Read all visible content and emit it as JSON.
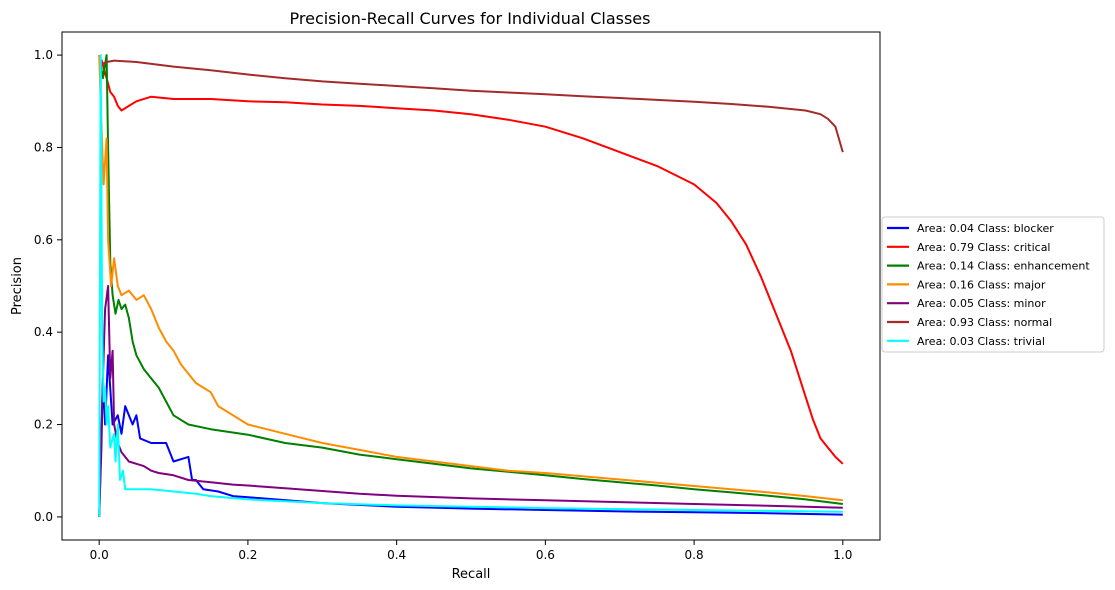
{
  "chart_data": {
    "type": "line",
    "title": "Precision-Recall Curves for Individual Classes",
    "xlabel": "Recall",
    "ylabel": "Precision",
    "xlim": [
      -0.05,
      1.05
    ],
    "ylim": [
      -0.05,
      1.05
    ],
    "xticks": [
      0.0,
      0.2,
      0.4,
      0.6,
      0.8,
      1.0
    ],
    "yticks": [
      0.0,
      0.2,
      0.4,
      0.6,
      0.8,
      1.0
    ],
    "grid": false,
    "legend_position": "center-right outside",
    "series": [
      {
        "name": "Area: 0.04 Class: blocker",
        "color": "#0000ff",
        "points": [
          [
            0,
            0
          ],
          [
            0.003,
            0.15
          ],
          [
            0.005,
            0.3
          ],
          [
            0.008,
            0.2
          ],
          [
            0.012,
            0.35
          ],
          [
            0.018,
            0.2
          ],
          [
            0.025,
            0.22
          ],
          [
            0.03,
            0.18
          ],
          [
            0.035,
            0.24
          ],
          [
            0.045,
            0.2
          ],
          [
            0.05,
            0.22
          ],
          [
            0.055,
            0.17
          ],
          [
            0.07,
            0.16
          ],
          [
            0.08,
            0.16
          ],
          [
            0.09,
            0.16
          ],
          [
            0.1,
            0.12
          ],
          [
            0.12,
            0.13
          ],
          [
            0.125,
            0.08
          ],
          [
            0.13,
            0.08
          ],
          [
            0.14,
            0.06
          ],
          [
            0.16,
            0.055
          ],
          [
            0.18,
            0.045
          ],
          [
            0.22,
            0.04
          ],
          [
            0.3,
            0.03
          ],
          [
            0.4,
            0.022
          ],
          [
            0.5,
            0.018
          ],
          [
            0.6,
            0.015
          ],
          [
            0.7,
            0.012
          ],
          [
            0.8,
            0.01
          ],
          [
            0.9,
            0.008
          ],
          [
            1.0,
            0.005
          ]
        ]
      },
      {
        "name": "Area: 0.79 Class: critical",
        "color": "#ff0000",
        "points": [
          [
            0.003,
            0.99
          ],
          [
            0.01,
            0.95
          ],
          [
            0.015,
            0.92
          ],
          [
            0.02,
            0.91
          ],
          [
            0.025,
            0.89
          ],
          [
            0.03,
            0.88
          ],
          [
            0.04,
            0.89
          ],
          [
            0.05,
            0.9
          ],
          [
            0.07,
            0.91
          ],
          [
            0.1,
            0.905
          ],
          [
            0.15,
            0.905
          ],
          [
            0.2,
            0.9
          ],
          [
            0.25,
            0.898
          ],
          [
            0.3,
            0.893
          ],
          [
            0.35,
            0.89
          ],
          [
            0.4,
            0.885
          ],
          [
            0.45,
            0.88
          ],
          [
            0.5,
            0.872
          ],
          [
            0.55,
            0.86
          ],
          [
            0.6,
            0.845
          ],
          [
            0.65,
            0.82
          ],
          [
            0.7,
            0.79
          ],
          [
            0.75,
            0.76
          ],
          [
            0.8,
            0.72
          ],
          [
            0.83,
            0.68
          ],
          [
            0.85,
            0.64
          ],
          [
            0.87,
            0.59
          ],
          [
            0.89,
            0.52
          ],
          [
            0.91,
            0.44
          ],
          [
            0.93,
            0.36
          ],
          [
            0.94,
            0.31
          ],
          [
            0.95,
            0.26
          ],
          [
            0.96,
            0.21
          ],
          [
            0.97,
            0.17
          ],
          [
            0.98,
            0.15
          ],
          [
            0.99,
            0.13
          ],
          [
            1.0,
            0.115
          ]
        ]
      },
      {
        "name": "Area: 0.14 Class: enhancement",
        "color": "#008000",
        "points": [
          [
            0,
            1.0
          ],
          [
            0.005,
            0.95
          ],
          [
            0.01,
            1.0
          ],
          [
            0.012,
            0.8
          ],
          [
            0.015,
            0.55
          ],
          [
            0.018,
            0.48
          ],
          [
            0.022,
            0.44
          ],
          [
            0.026,
            0.47
          ],
          [
            0.03,
            0.45
          ],
          [
            0.035,
            0.46
          ],
          [
            0.04,
            0.43
          ],
          [
            0.045,
            0.38
          ],
          [
            0.05,
            0.35
          ],
          [
            0.06,
            0.32
          ],
          [
            0.07,
            0.3
          ],
          [
            0.08,
            0.28
          ],
          [
            0.09,
            0.25
          ],
          [
            0.1,
            0.22
          ],
          [
            0.12,
            0.2
          ],
          [
            0.15,
            0.19
          ],
          [
            0.2,
            0.178
          ],
          [
            0.25,
            0.16
          ],
          [
            0.3,
            0.15
          ],
          [
            0.35,
            0.135
          ],
          [
            0.4,
            0.125
          ],
          [
            0.45,
            0.115
          ],
          [
            0.5,
            0.105
          ],
          [
            0.55,
            0.098
          ],
          [
            0.6,
            0.09
          ],
          [
            0.65,
            0.082
          ],
          [
            0.7,
            0.075
          ],
          [
            0.75,
            0.068
          ],
          [
            0.8,
            0.06
          ],
          [
            0.85,
            0.053
          ],
          [
            0.9,
            0.046
          ],
          [
            0.95,
            0.038
          ],
          [
            1.0,
            0.028
          ]
        ]
      },
      {
        "name": "Area: 0.16 Class: major",
        "color": "#ff8c00",
        "points": [
          [
            0,
            1.0
          ],
          [
            0.003,
            0.85
          ],
          [
            0.006,
            0.72
          ],
          [
            0.01,
            0.82
          ],
          [
            0.012,
            0.6
          ],
          [
            0.016,
            0.5
          ],
          [
            0.02,
            0.56
          ],
          [
            0.025,
            0.5
          ],
          [
            0.03,
            0.48
          ],
          [
            0.04,
            0.49
          ],
          [
            0.05,
            0.47
          ],
          [
            0.06,
            0.48
          ],
          [
            0.07,
            0.45
          ],
          [
            0.08,
            0.41
          ],
          [
            0.09,
            0.38
          ],
          [
            0.1,
            0.36
          ],
          [
            0.11,
            0.33
          ],
          [
            0.12,
            0.31
          ],
          [
            0.13,
            0.29
          ],
          [
            0.14,
            0.28
          ],
          [
            0.15,
            0.27
          ],
          [
            0.16,
            0.24
          ],
          [
            0.18,
            0.22
          ],
          [
            0.2,
            0.2
          ],
          [
            0.25,
            0.18
          ],
          [
            0.3,
            0.16
          ],
          [
            0.35,
            0.145
          ],
          [
            0.4,
            0.13
          ],
          [
            0.45,
            0.12
          ],
          [
            0.5,
            0.11
          ],
          [
            0.55,
            0.1
          ],
          [
            0.6,
            0.095
          ],
          [
            0.65,
            0.088
          ],
          [
            0.7,
            0.081
          ],
          [
            0.75,
            0.074
          ],
          [
            0.8,
            0.067
          ],
          [
            0.85,
            0.06
          ],
          [
            0.9,
            0.053
          ],
          [
            0.95,
            0.045
          ],
          [
            1.0,
            0.036
          ]
        ]
      },
      {
        "name": "Area: 0.05 Class: minor",
        "color": "#800080",
        "points": [
          [
            0,
            0
          ],
          [
            0.004,
            0.25
          ],
          [
            0.008,
            0.45
          ],
          [
            0.012,
            0.5
          ],
          [
            0.015,
            0.3
          ],
          [
            0.018,
            0.36
          ],
          [
            0.02,
            0.2
          ],
          [
            0.025,
            0.16
          ],
          [
            0.03,
            0.14
          ],
          [
            0.04,
            0.12
          ],
          [
            0.05,
            0.115
          ],
          [
            0.06,
            0.11
          ],
          [
            0.07,
            0.1
          ],
          [
            0.08,
            0.095
          ],
          [
            0.1,
            0.09
          ],
          [
            0.12,
            0.08
          ],
          [
            0.15,
            0.075
          ],
          [
            0.18,
            0.07
          ],
          [
            0.2,
            0.068
          ],
          [
            0.25,
            0.062
          ],
          [
            0.3,
            0.056
          ],
          [
            0.35,
            0.05
          ],
          [
            0.4,
            0.046
          ],
          [
            0.5,
            0.04
          ],
          [
            0.6,
            0.036
          ],
          [
            0.7,
            0.032
          ],
          [
            0.8,
            0.028
          ],
          [
            0.9,
            0.024
          ],
          [
            1.0,
            0.02
          ]
        ]
      },
      {
        "name": "Area: 0.93 Class: normal",
        "color": "#a52a2a",
        "points": [
          [
            0.003,
            0.98
          ],
          [
            0.01,
            0.985
          ],
          [
            0.02,
            0.988
          ],
          [
            0.05,
            0.985
          ],
          [
            0.1,
            0.975
          ],
          [
            0.15,
            0.967
          ],
          [
            0.2,
            0.958
          ],
          [
            0.25,
            0.95
          ],
          [
            0.3,
            0.943
          ],
          [
            0.35,
            0.938
          ],
          [
            0.4,
            0.933
          ],
          [
            0.45,
            0.928
          ],
          [
            0.5,
            0.923
          ],
          [
            0.55,
            0.919
          ],
          [
            0.6,
            0.915
          ],
          [
            0.65,
            0.911
          ],
          [
            0.7,
            0.907
          ],
          [
            0.75,
            0.903
          ],
          [
            0.8,
            0.899
          ],
          [
            0.85,
            0.894
          ],
          [
            0.9,
            0.888
          ],
          [
            0.95,
            0.88
          ],
          [
            0.97,
            0.872
          ],
          [
            0.98,
            0.862
          ],
          [
            0.99,
            0.845
          ],
          [
            1.0,
            0.79
          ]
        ]
      },
      {
        "name": "Area: 0.03 Class: trivial",
        "color": "#00ffff",
        "points": [
          [
            0,
            0
          ],
          [
            0.002,
            1.0
          ],
          [
            0.004,
            0.4
          ],
          [
            0.006,
            0.25
          ],
          [
            0.008,
            0.28
          ],
          [
            0.01,
            0.2
          ],
          [
            0.012,
            0.24
          ],
          [
            0.015,
            0.15
          ],
          [
            0.018,
            0.17
          ],
          [
            0.02,
            0.18
          ],
          [
            0.022,
            0.12
          ],
          [
            0.025,
            0.2
          ],
          [
            0.028,
            0.08
          ],
          [
            0.032,
            0.1
          ],
          [
            0.035,
            0.06
          ],
          [
            0.05,
            0.06
          ],
          [
            0.07,
            0.06
          ],
          [
            0.1,
            0.055
          ],
          [
            0.13,
            0.05
          ],
          [
            0.15,
            0.045
          ],
          [
            0.2,
            0.038
          ],
          [
            0.25,
            0.034
          ],
          [
            0.3,
            0.03
          ],
          [
            0.4,
            0.025
          ],
          [
            0.5,
            0.022
          ],
          [
            0.6,
            0.019
          ],
          [
            0.7,
            0.017
          ],
          [
            0.8,
            0.015
          ],
          [
            0.9,
            0.013
          ],
          [
            1.0,
            0.011
          ]
        ]
      }
    ]
  }
}
